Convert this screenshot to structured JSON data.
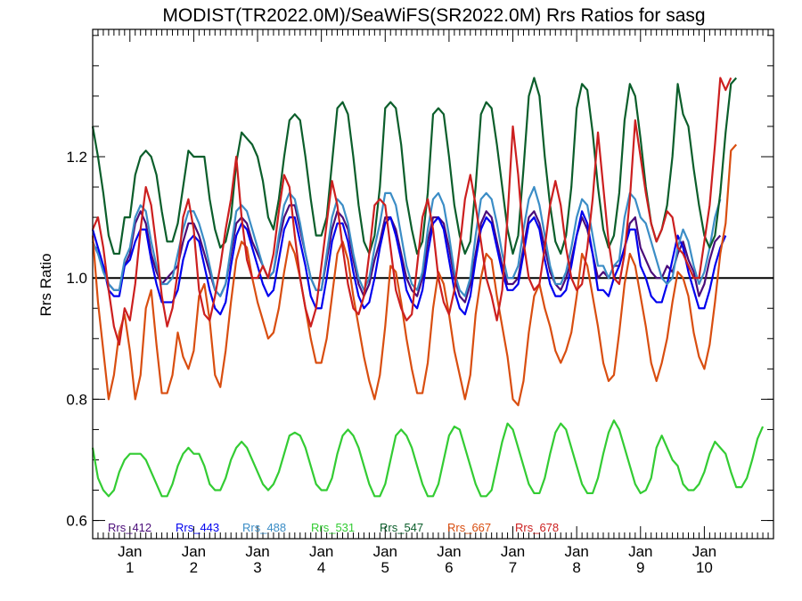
{
  "chart_data": {
    "type": "line",
    "title": "MODIST(TR2022.0M)/SeaWiFS(SR2022.0M)  Rrs Ratios for sasg",
    "xlabel": "",
    "ylabel": "Rrs Ratio",
    "xlim": [
      0,
      128
    ],
    "ylim": [
      0.57,
      1.41
    ],
    "yticks": [
      0.6,
      0.8,
      1.0,
      1.2
    ],
    "ytick_labels": [
      "0.6",
      "0.8",
      "1.0",
      "1.2"
    ],
    "xticks": [
      {
        "x": 7,
        "top": "Jan",
        "bottom": "1"
      },
      {
        "x": 19,
        "top": "Jan",
        "bottom": "2"
      },
      {
        "x": 31,
        "top": "Jan",
        "bottom": "3"
      },
      {
        "x": 43,
        "top": "Jan",
        "bottom": "4"
      },
      {
        "x": 55,
        "top": "Jan",
        "bottom": "5"
      },
      {
        "x": 67,
        "top": "Jan",
        "bottom": "6"
      },
      {
        "x": 79,
        "top": "Jan",
        "bottom": "7"
      },
      {
        "x": 91,
        "top": "Jan",
        "bottom": "8"
      },
      {
        "x": 103,
        "top": "Jan",
        "bottom": "9"
      },
      {
        "x": 115,
        "top": "Jan",
        "bottom": "10"
      }
    ],
    "reference_line": 1.0,
    "legend_position": "bottom-left",
    "series": [
      {
        "name": "Rrs_412",
        "color": "#4b0d7a",
        "values": [
          1.06,
          1.04,
          1.02,
          0.99,
          0.98,
          0.98,
          1.02,
          1.04,
          1.09,
          1.11,
          1.09,
          1.04,
          1.01,
          0.99,
          1.0,
          1.01,
          1.02,
          1.06,
          1.09,
          1.09,
          1.07,
          1.04,
          1.01,
          0.98,
          0.97,
          0.99,
          1.04,
          1.09,
          1.1,
          1.09,
          1.06,
          1.04,
          1.02,
          1.0,
          1.01,
          1.06,
          1.1,
          1.12,
          1.12,
          1.08,
          1.04,
          1.0,
          0.98,
          0.98,
          1.03,
          1.08,
          1.11,
          1.1,
          1.08,
          1.03,
          0.99,
          0.97,
          0.99,
          1.03,
          1.06,
          1.1,
          1.1,
          1.08,
          1.04,
          1.0,
          0.98,
          0.97,
          1.0,
          1.06,
          1.1,
          1.1,
          1.09,
          1.05,
          1.0,
          0.97,
          0.96,
          0.99,
          1.04,
          1.09,
          1.11,
          1.1,
          1.06,
          1.02,
          0.99,
          0.99,
          1.0,
          1.05,
          1.1,
          1.11,
          1.09,
          1.05,
          1.01,
          0.99,
          0.98,
          1.0,
          1.03,
          1.07,
          1.1,
          1.08,
          1.04,
          1.0,
          1.01,
          1.0,
          1.02,
          1.02,
          1.05,
          1.09,
          1.1,
          1.05,
          1.03,
          1.01,
          1.0,
          1.0,
          1.02,
          1.01,
          1.04,
          1.06,
          1.03,
          1.01,
          0.97,
          0.99,
          1.03,
          1.06,
          1.07
        ]
      },
      {
        "name": "Rrs_443",
        "color": "#0000ee",
        "values": [
          1.08,
          1.05,
          1.02,
          0.98,
          0.97,
          0.97,
          1.02,
          1.03,
          1.06,
          1.08,
          1.08,
          1.03,
          0.99,
          0.96,
          0.96,
          0.96,
          0.98,
          1.03,
          1.06,
          1.07,
          1.06,
          1.02,
          0.98,
          0.95,
          0.94,
          0.96,
          1.02,
          1.07,
          1.09,
          1.08,
          1.05,
          1.02,
          0.99,
          0.97,
          0.98,
          1.03,
          1.08,
          1.1,
          1.1,
          1.06,
          1.02,
          0.97,
          0.95,
          0.95,
          1.0,
          1.06,
          1.09,
          1.09,
          1.06,
          1.01,
          0.97,
          0.95,
          0.96,
          1.0,
          1.05,
          1.09,
          1.1,
          1.07,
          1.03,
          0.98,
          0.96,
          0.95,
          0.98,
          1.04,
          1.09,
          1.1,
          1.08,
          1.03,
          0.98,
          0.95,
          0.94,
          0.97,
          1.03,
          1.08,
          1.1,
          1.09,
          1.05,
          1.01,
          0.98,
          0.98,
          0.99,
          1.04,
          1.09,
          1.1,
          1.08,
          1.03,
          0.99,
          0.97,
          0.97,
          0.98,
          1.02,
          1.07,
          1.11,
          1.09,
          1.04,
          0.98,
          0.98,
          0.97,
          1.0,
          1.02,
          1.05,
          1.08,
          1.08,
          1.02,
          1.0,
          0.97,
          0.96,
          0.96,
          0.99,
          1.03,
          1.07,
          1.05,
          1.01,
          0.98,
          0.95,
          0.95,
          0.98,
          1.02,
          1.05,
          1.07
        ]
      },
      {
        "name": "Rrs_488",
        "color": "#3b8dc6",
        "values": [
          1.06,
          1.04,
          1.01,
          0.99,
          0.98,
          0.98,
          1.03,
          1.05,
          1.1,
          1.12,
          1.11,
          1.06,
          1.02,
          0.99,
          0.99,
          1.0,
          1.04,
          1.08,
          1.11,
          1.11,
          1.09,
          1.06,
          1.02,
          0.98,
          0.97,
          0.99,
          1.05,
          1.11,
          1.12,
          1.11,
          1.08,
          1.05,
          1.02,
          1.0,
          1.01,
          1.07,
          1.12,
          1.14,
          1.13,
          1.09,
          1.04,
          1.0,
          0.98,
          0.98,
          1.04,
          1.1,
          1.13,
          1.12,
          1.09,
          1.04,
          1.0,
          0.98,
          1.0,
          1.05,
          1.09,
          1.14,
          1.14,
          1.12,
          1.07,
          1.02,
          0.99,
          0.98,
          1.01,
          1.08,
          1.13,
          1.14,
          1.12,
          1.07,
          1.01,
          0.98,
          0.97,
          1.0,
          1.07,
          1.13,
          1.14,
          1.13,
          1.09,
          1.04,
          1.0,
          1.0,
          1.02,
          1.08,
          1.13,
          1.15,
          1.12,
          1.07,
          1.02,
          0.99,
          0.99,
          1.01,
          1.05,
          1.1,
          1.13,
          1.12,
          1.07,
          1.02,
          1.02,
          1.0,
          1.02,
          1.03,
          1.1,
          1.14,
          1.13,
          1.1,
          1.09,
          1.06,
          1.03,
          1.0,
          0.99,
          1.0,
          1.05,
          1.08,
          1.06,
          1.02,
          0.99,
          1.01,
          1.05,
          1.1,
          1.13
        ]
      },
      {
        "name": "Rrs_531",
        "color": "#33cc33",
        "values": [
          0.72,
          0.67,
          0.65,
          0.64,
          0.65,
          0.68,
          0.7,
          0.71,
          0.71,
          0.71,
          0.7,
          0.68,
          0.66,
          0.64,
          0.64,
          0.66,
          0.69,
          0.71,
          0.72,
          0.71,
          0.71,
          0.69,
          0.66,
          0.65,
          0.65,
          0.67,
          0.7,
          0.72,
          0.73,
          0.72,
          0.7,
          0.68,
          0.66,
          0.65,
          0.66,
          0.68,
          0.71,
          0.74,
          0.745,
          0.74,
          0.72,
          0.69,
          0.66,
          0.65,
          0.65,
          0.67,
          0.71,
          0.74,
          0.75,
          0.74,
          0.72,
          0.69,
          0.66,
          0.64,
          0.64,
          0.66,
          0.7,
          0.74,
          0.75,
          0.74,
          0.72,
          0.69,
          0.66,
          0.64,
          0.64,
          0.66,
          0.7,
          0.74,
          0.755,
          0.75,
          0.72,
          0.69,
          0.66,
          0.64,
          0.64,
          0.65,
          0.69,
          0.73,
          0.76,
          0.75,
          0.72,
          0.69,
          0.66,
          0.645,
          0.645,
          0.67,
          0.71,
          0.745,
          0.76,
          0.75,
          0.72,
          0.69,
          0.66,
          0.645,
          0.645,
          0.67,
          0.71,
          0.745,
          0.765,
          0.75,
          0.72,
          0.69,
          0.66,
          0.645,
          0.65,
          0.67,
          0.72,
          0.74,
          0.72,
          0.7,
          0.69,
          0.66,
          0.65,
          0.65,
          0.66,
          0.68,
          0.71,
          0.73,
          0.72,
          0.71,
          0.68,
          0.655,
          0.655,
          0.67,
          0.7,
          0.735,
          0.755
        ]
      },
      {
        "name": "Rrs_547",
        "color": "#0b5e2b",
        "values": [
          1.25,
          1.2,
          1.14,
          1.07,
          1.04,
          1.04,
          1.1,
          1.1,
          1.17,
          1.2,
          1.21,
          1.2,
          1.17,
          1.11,
          1.06,
          1.06,
          1.09,
          1.15,
          1.21,
          1.2,
          1.2,
          1.2,
          1.13,
          1.08,
          1.05,
          1.06,
          1.1,
          1.19,
          1.24,
          1.23,
          1.22,
          1.2,
          1.16,
          1.1,
          1.08,
          1.13,
          1.2,
          1.26,
          1.27,
          1.26,
          1.2,
          1.13,
          1.07,
          1.07,
          1.1,
          1.19,
          1.28,
          1.29,
          1.27,
          1.2,
          1.12,
          1.06,
          1.04,
          1.07,
          1.15,
          1.28,
          1.29,
          1.28,
          1.22,
          1.13,
          1.08,
          1.04,
          1.06,
          1.14,
          1.27,
          1.28,
          1.27,
          1.2,
          1.12,
          1.07,
          1.04,
          1.06,
          1.15,
          1.27,
          1.29,
          1.28,
          1.22,
          1.15,
          1.08,
          1.04,
          1.07,
          1.18,
          1.3,
          1.33,
          1.3,
          1.2,
          1.12,
          1.06,
          1.04,
          1.07,
          1.15,
          1.28,
          1.32,
          1.31,
          1.24,
          1.15,
          1.08,
          1.05,
          1.07,
          1.14,
          1.26,
          1.32,
          1.3,
          1.23,
          1.15,
          1.09,
          1.06,
          1.08,
          1.12,
          1.2,
          1.32,
          1.27,
          1.25,
          1.18,
          1.12,
          1.07,
          1.05,
          1.07,
          1.14,
          1.24,
          1.32,
          1.33
        ]
      },
      {
        "name": "Rrs_667",
        "color": "#d94e10",
        "values": [
          1.07,
          0.96,
          0.88,
          0.8,
          0.84,
          0.91,
          0.94,
          0.88,
          0.8,
          0.84,
          0.95,
          0.98,
          0.89,
          0.81,
          0.81,
          0.84,
          0.91,
          0.87,
          0.85,
          0.88,
          0.97,
          0.99,
          0.93,
          0.84,
          0.82,
          0.88,
          0.96,
          1.03,
          1.06,
          1.05,
          1.0,
          0.96,
          0.93,
          0.9,
          0.91,
          0.95,
          1.01,
          1.06,
          1.04,
          1.0,
          0.95,
          0.9,
          0.86,
          0.86,
          0.9,
          0.97,
          1.04,
          1.06,
          1.03,
          0.97,
          0.92,
          0.87,
          0.83,
          0.8,
          0.84,
          0.92,
          1.02,
          1.01,
          0.96,
          0.9,
          0.85,
          0.81,
          0.81,
          0.86,
          0.95,
          1.01,
          0.99,
          0.94,
          0.88,
          0.84,
          0.8,
          0.84,
          0.94,
          1.0,
          1.04,
          1.03,
          0.97,
          0.92,
          0.87,
          0.8,
          0.79,
          0.83,
          0.91,
          0.97,
          0.99,
          0.95,
          0.92,
          0.88,
          0.86,
          0.88,
          0.91,
          0.97,
          1.04,
          1.02,
          0.97,
          0.92,
          0.86,
          0.83,
          0.84,
          0.91,
          0.99,
          1.04,
          1.02,
          0.97,
          0.92,
          0.86,
          0.83,
          0.86,
          0.9,
          0.96,
          1.01,
          1.0,
          0.97,
          0.91,
          0.87,
          0.85,
          0.89,
          0.96,
          1.04,
          1.09,
          1.21,
          1.22
        ]
      },
      {
        "name": "Rrs_678",
        "color": "#cc1f1f",
        "values": [
          1.08,
          1.1,
          1.05,
          0.98,
          0.92,
          0.89,
          0.95,
          0.93,
          0.99,
          1.08,
          1.15,
          1.12,
          1.05,
          0.97,
          0.92,
          0.95,
          1.01,
          1.1,
          1.13,
          1.08,
          0.98,
          0.94,
          0.93,
          0.97,
          1.02,
          1.08,
          1.13,
          1.2,
          1.1,
          1.03,
          1.0,
          1.0,
          1.02,
          1.0,
          1.04,
          1.11,
          1.17,
          1.15,
          1.07,
          1.0,
          0.95,
          0.92,
          0.95,
          1.02,
          1.09,
          1.16,
          1.12,
          1.05,
          0.99,
          0.95,
          0.94,
          0.97,
          1.04,
          1.12,
          1.13,
          1.12,
          1.05,
          0.98,
          0.95,
          0.93,
          0.94,
          1.02,
          1.1,
          1.13,
          1.08,
          1.0,
          0.96,
          0.94,
          0.98,
          1.05,
          1.13,
          1.17,
          1.12,
          1.06,
          1.0,
          0.97,
          0.93,
          0.98,
          1.1,
          1.25,
          1.17,
          1.06,
          1.0,
          0.98,
          0.99,
          1.05,
          1.12,
          1.16,
          1.12,
          1.05,
          1.0,
          0.98,
          0.99,
          1.05,
          1.13,
          1.24,
          1.15,
          1.06,
          1.0,
          0.99,
          1.04,
          1.13,
          1.26,
          1.2,
          1.14,
          1.09,
          1.06,
          1.08,
          1.11,
          1.1,
          1.05,
          1.04,
          1.02,
          1.0,
          1.0,
          1.06,
          1.12,
          1.22,
          1.33,
          1.31,
          1.33
        ]
      }
    ]
  }
}
